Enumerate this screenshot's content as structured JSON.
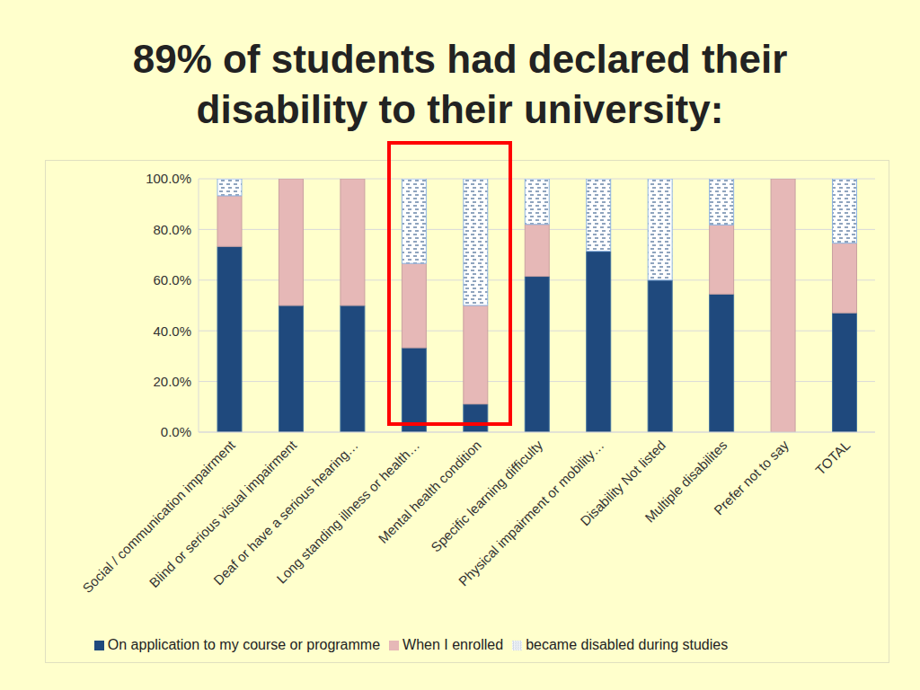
{
  "chart_data": {
    "type": "bar",
    "title": "89% of students had declared their disability to their university:",
    "stacked": true,
    "grid": true,
    "legend": "bottom",
    "categories": [
      "Social / communication impairment",
      "Blind or  serious visual impairment",
      "Deaf or have a serious hearing…",
      "Long standing illness or health…",
      "Mental health condition",
      "Specific learning difficulty",
      "Physical impairment or mobility…",
      "Disability Not listed",
      "Multiple disabilites",
      "Prefer not to say",
      "TOTAL"
    ],
    "series": [
      {
        "name": "On application to my course or programme",
        "color": "#1f497d",
        "values": [
          73.3,
          50,
          50,
          33.3,
          11.1,
          61.5,
          71.4,
          60,
          54.5,
          0,
          47.1
        ]
      },
      {
        "name": "When I enrolled",
        "color": "#e6b8b7",
        "values": [
          20,
          50,
          50,
          33.3,
          38.9,
          20.5,
          0,
          0,
          27.3,
          100,
          27.5
        ]
      },
      {
        "name": "became disabled during  studies",
        "color": "#ffffff",
        "values": [
          6.7,
          0,
          0,
          33.4,
          50,
          18,
          28.6,
          40,
          18.2,
          0,
          25.4
        ]
      }
    ],
    "ylim": [
      0,
      100
    ],
    "yticks": [
      {
        "value": 0,
        "label": "0.0%"
      },
      {
        "value": 20,
        "label": "20.0%"
      },
      {
        "value": 40,
        "label": "40.0%"
      },
      {
        "value": 60,
        "label": "60.0%"
      },
      {
        "value": 80,
        "label": "80.0%"
      },
      {
        "value": 100,
        "label": "100.0%"
      }
    ]
  }
}
